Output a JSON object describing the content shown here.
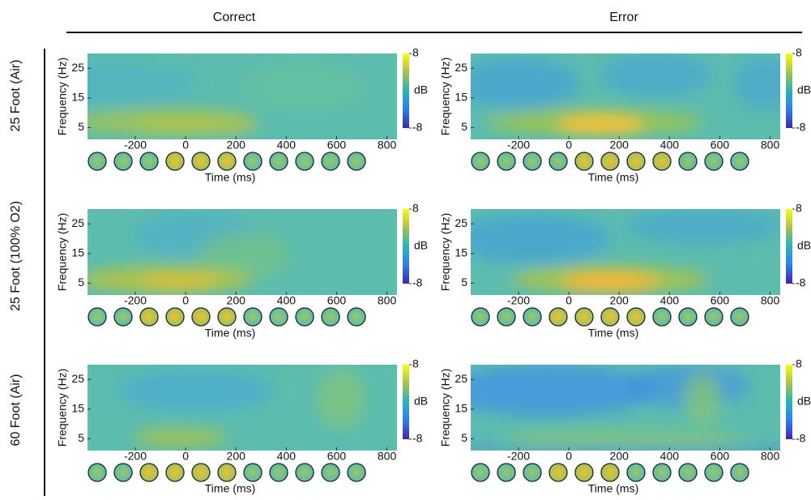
{
  "columns": [
    "Correct",
    "Error"
  ],
  "rows": [
    "25 Foot (Air)",
    "25 Foot (100% O2)",
    "60 Foot (Air)"
  ],
  "chart_data": [
    {
      "type": "heatmap",
      "xlabel": "Time (ms)",
      "ylabel": "Frequency (Hz)",
      "xlim": [
        -390,
        840
      ],
      "xticks": [
        -200,
        0,
        200,
        400,
        600,
        800
      ],
      "ylim": [
        1,
        30
      ],
      "yticks": [
        5,
        15,
        25
      ],
      "colorbar_label": "dB",
      "clim": [
        -8,
        8
      ],
      "cticks": [
        8,
        -8
      ]
    },
    {
      "type": "heatmap",
      "xlabel": "Time (ms)",
      "ylabel": "Frequency (Hz)",
      "xlim": [
        -390,
        840
      ],
      "xticks": [
        -200,
        0,
        200,
        400,
        600,
        800
      ],
      "ylim": [
        1,
        30
      ],
      "yticks": [
        5,
        15,
        25
      ],
      "colorbar_label": "dB",
      "clim": [
        -8,
        8
      ],
      "cticks": [
        8,
        -8
      ]
    },
    {
      "type": "heatmap",
      "xlabel": "Time (ms)",
      "ylabel": "Frequency (Hz)",
      "xlim": [
        -390,
        840
      ],
      "xticks": [
        -200,
        0,
        200,
        400,
        600,
        800
      ],
      "ylim": [
        1,
        30
      ],
      "yticks": [
        5,
        15,
        25
      ],
      "colorbar_label": "dB",
      "clim": [
        -8,
        8
      ],
      "cticks": [
        8,
        -8
      ]
    },
    {
      "type": "heatmap",
      "xlabel": "Time (ms)",
      "ylabel": "Frequency (Hz)",
      "xlim": [
        -390,
        840
      ],
      "xticks": [
        -200,
        0,
        200,
        400,
        600,
        800
      ],
      "ylim": [
        1,
        30
      ],
      "yticks": [
        5,
        15,
        25
      ],
      "colorbar_label": "dB",
      "clim": [
        -8,
        8
      ],
      "cticks": [
        8,
        -8
      ]
    },
    {
      "type": "heatmap",
      "xlabel": "Time (ms)",
      "ylabel": "Frequency (Hz)",
      "xlim": [
        -390,
        840
      ],
      "xticks": [
        -200,
        0,
        200,
        400,
        600,
        800
      ],
      "ylim": [
        1,
        30
      ],
      "yticks": [
        5,
        15,
        25
      ],
      "colorbar_label": "dB",
      "clim": [
        -8,
        8
      ],
      "cticks": [
        8,
        -8
      ]
    },
    {
      "type": "heatmap",
      "xlabel": "Time (ms)",
      "ylabel": "Frequency (Hz)",
      "xlim": [
        -390,
        840
      ],
      "xticks": [
        -200,
        0,
        200,
        400,
        600,
        800
      ],
      "ylim": [
        1,
        30
      ],
      "yticks": [
        5,
        15,
        25
      ],
      "colorbar_label": "dB",
      "clim": [
        -8,
        8
      ],
      "cticks": [
        8,
        -8
      ]
    }
  ]
}
